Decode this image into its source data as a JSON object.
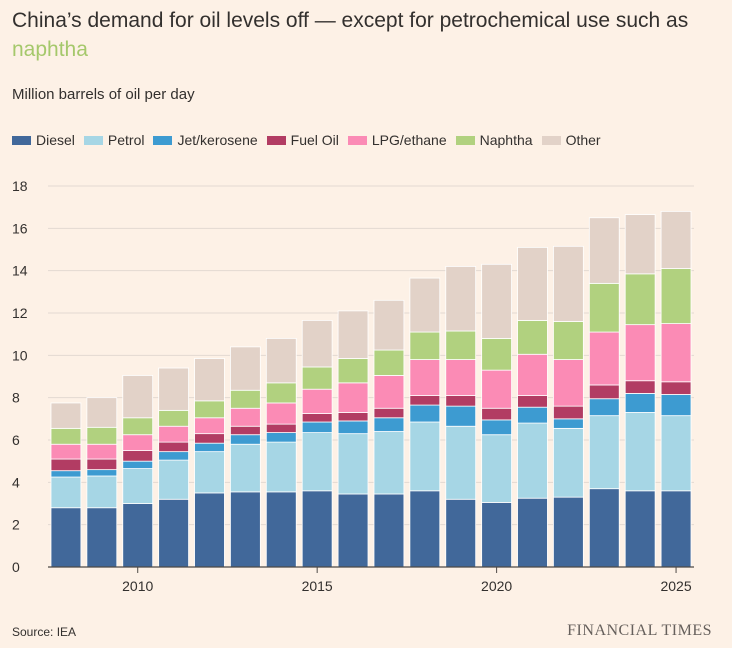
{
  "header": {
    "title_part1": "China’s demand for oil levels off — except for petrochemical use such as",
    "title_part2": "naphtha",
    "subtitle": "Million barrels of oil per day"
  },
  "footer": {
    "source": "Source: IEA",
    "brand": "FINANCIAL TIMES"
  },
  "colors": {
    "Diesel": "#41689a",
    "Petrol": "#a6d6e5",
    "Jet/kerosene": "#3d9bd1",
    "Fuel Oil": "#b23c63",
    "LPG/ethane": "#fb8bb5",
    "Naphtha": "#b1d17f",
    "Other": "#e2d2c8",
    "grid": "#e3d9d1",
    "axis": "#4e4a47",
    "background": "#fdf1e6",
    "title_highlight": "#a5c86b"
  },
  "chart_data": {
    "type": "bar",
    "stacked": true,
    "x": [
      2008,
      2009,
      2010,
      2011,
      2012,
      2013,
      2014,
      2015,
      2016,
      2017,
      2018,
      2019,
      2020,
      2021,
      2022,
      2023,
      2024,
      2025
    ],
    "xticks": [
      "2010",
      "2015",
      "2020",
      "2025"
    ],
    "xtick_values": [
      2010,
      2015,
      2020,
      2025
    ],
    "yticks": [
      "0",
      "2",
      "4",
      "6",
      "8",
      "10",
      "12",
      "14",
      "16",
      "18"
    ],
    "ylim": [
      0,
      18
    ],
    "ylabel": "Million barrels of oil per day",
    "legend_position": "top-left",
    "grid": true,
    "series": [
      {
        "name": "Diesel",
        "values": [
          2.8,
          2.8,
          3.0,
          3.2,
          3.5,
          3.55,
          3.55,
          3.6,
          3.45,
          3.45,
          3.6,
          3.2,
          3.05,
          3.25,
          3.3,
          3.7,
          3.6,
          3.6
        ]
      },
      {
        "name": "Petrol",
        "values": [
          1.45,
          1.5,
          1.65,
          1.85,
          1.95,
          2.25,
          2.35,
          2.75,
          2.85,
          2.95,
          3.25,
          3.45,
          3.2,
          3.55,
          3.25,
          3.45,
          3.7,
          3.55
        ]
      },
      {
        "name": "Jet/kerosene",
        "values": [
          0.3,
          0.3,
          0.35,
          0.4,
          0.4,
          0.45,
          0.45,
          0.5,
          0.6,
          0.65,
          0.8,
          0.95,
          0.7,
          0.75,
          0.45,
          0.8,
          0.9,
          1.0
        ]
      },
      {
        "name": "Fuel Oil",
        "values": [
          0.55,
          0.5,
          0.5,
          0.45,
          0.45,
          0.4,
          0.4,
          0.4,
          0.4,
          0.45,
          0.45,
          0.5,
          0.55,
          0.55,
          0.6,
          0.65,
          0.6,
          0.6
        ]
      },
      {
        "name": "LPG/ethane",
        "values": [
          0.7,
          0.7,
          0.75,
          0.75,
          0.75,
          0.85,
          1.0,
          1.15,
          1.4,
          1.55,
          1.7,
          1.7,
          1.8,
          1.95,
          2.2,
          2.5,
          2.65,
          2.75
        ]
      },
      {
        "name": "Naphtha",
        "values": [
          0.75,
          0.8,
          0.8,
          0.75,
          0.8,
          0.85,
          0.95,
          1.05,
          1.15,
          1.2,
          1.3,
          1.35,
          1.5,
          1.6,
          1.8,
          2.3,
          2.4,
          2.6
        ]
      },
      {
        "name": "Other",
        "values": [
          1.2,
          1.4,
          2.0,
          2.0,
          2.0,
          2.05,
          2.1,
          2.2,
          2.25,
          2.35,
          2.55,
          3.05,
          3.5,
          3.45,
          3.55,
          3.1,
          2.8,
          2.7
        ]
      }
    ]
  }
}
